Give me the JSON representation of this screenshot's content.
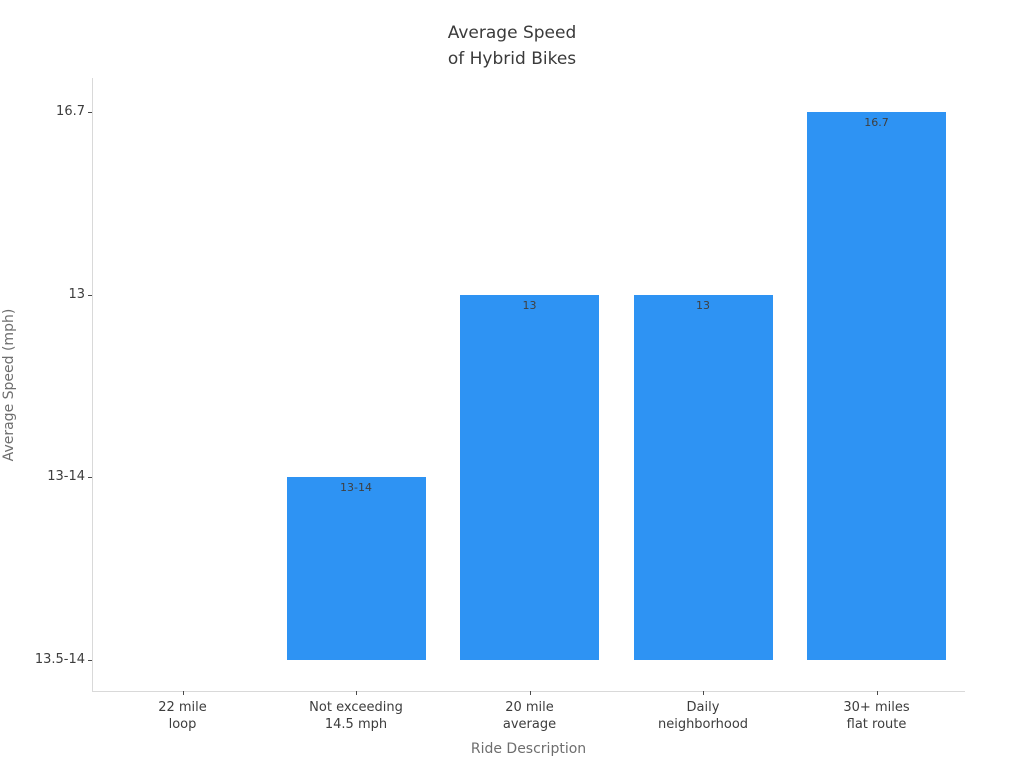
{
  "title": {
    "line1": "Average Speed",
    "line2": "of Hybrid Bikes"
  },
  "chart_data": {
    "type": "bar",
    "title": "Average Speed of Hybrid Bikes",
    "xlabel": "Ride Description",
    "ylabel": "Average Speed (mph)",
    "categories": [
      [
        "22 mile",
        "loop"
      ],
      [
        "Not exceeding",
        "14.5 mph"
      ],
      [
        "20 mile",
        "average"
      ],
      [
        "Daily",
        "neighborhood"
      ],
      [
        "30+ miles",
        "flat route"
      ]
    ],
    "y_tick_labels": [
      "13.5-14",
      "13-14",
      "13",
      "16.7"
    ],
    "bar_value_labels": [
      null,
      "13-14",
      "13",
      "13",
      "16.7"
    ],
    "bar_heights_category_index": [
      0,
      1,
      2,
      2,
      3
    ],
    "bar_color": "#2e93f3",
    "text_color_ticks": "#3d3d3d",
    "text_color_axis_labels": "#6e6e6e",
    "grid": false,
    "legend": false
  }
}
